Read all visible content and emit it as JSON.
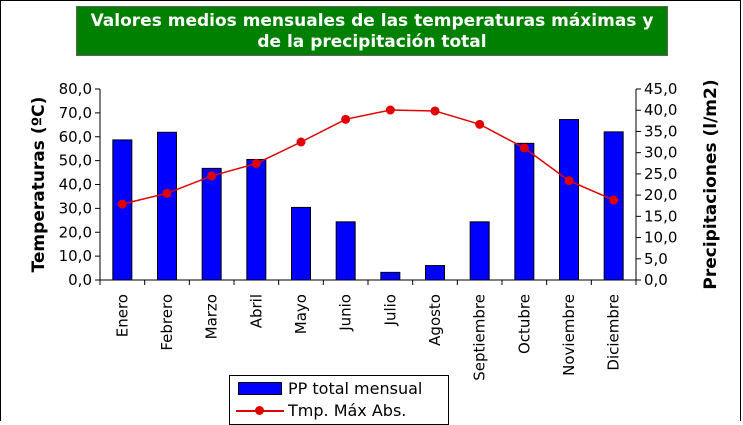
{
  "chart_data": {
    "type": "bar+line",
    "title_lines": [
      "Valores medios mensuales de las temperaturas máximas y",
      "de la precipitación total"
    ],
    "title_bg": "#008000",
    "title_color": "#ffffff",
    "categories": [
      "Enero",
      "Febrero",
      "Marzo",
      "Abril",
      "Mayo",
      "Junio",
      "Julio",
      "Agosto",
      "Septiembre",
      "Octubre",
      "Noviembre",
      "Diciembre"
    ],
    "series": [
      {
        "name": "PP total mensual",
        "type": "bar",
        "axis": "right",
        "color": "#0000ff",
        "values": [
          33.0,
          34.8,
          26.3,
          28.4,
          17.1,
          13.7,
          1.8,
          3.4,
          13.7,
          32.2,
          37.8,
          34.9
        ]
      },
      {
        "name": "Tmp. Máx Abs.",
        "type": "line",
        "axis": "left",
        "color": "#e00000",
        "values": [
          31.8,
          36.3,
          43.6,
          48.8,
          57.8,
          67.3,
          71.2,
          70.8,
          65.2,
          55.3,
          41.6,
          33.5
        ]
      }
    ],
    "ylabel_left": "Temperaturas (ºC)",
    "ylabel_right": "Precipitaciones (l/m2)",
    "ylim_left": [
      0,
      80
    ],
    "ylim_right": [
      0,
      45
    ],
    "yticks_left": [
      "0,0",
      "10,0",
      "20,0",
      "30,0",
      "40,0",
      "50,0",
      "60,0",
      "70,0",
      "80,0"
    ],
    "yticks_right": [
      "0,0",
      "5,0",
      "10,0",
      "15,0",
      "20,0",
      "25,0",
      "30,0",
      "35,0",
      "40,0",
      "45,0"
    ],
    "grid": false,
    "legend_position": "bottom"
  }
}
